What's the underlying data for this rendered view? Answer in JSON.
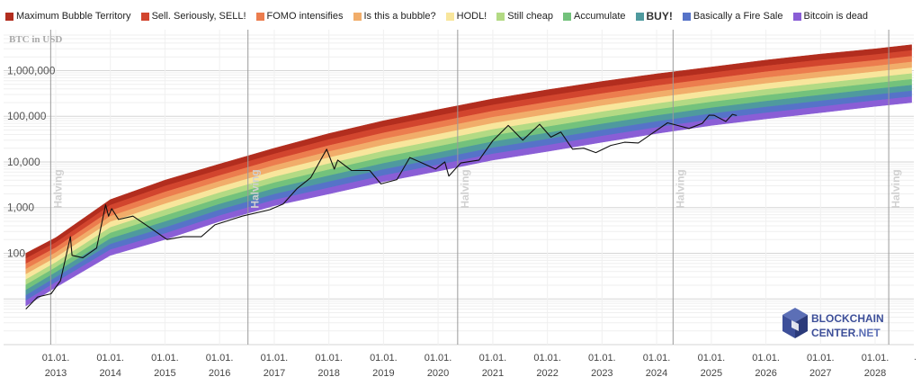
{
  "chart_data": {
    "type": "line",
    "y_scale": "log",
    "ylabel": "BTC in USD",
    "ylim": [
      1,
      6000000
    ],
    "x_ticks": [
      {
        "date": "2013-01-01",
        "label1": "01.01.",
        "label2": "2013"
      },
      {
        "date": "2014-01-01",
        "label1": "01.01.",
        "label2": "2014"
      },
      {
        "date": "2015-01-01",
        "label1": "01.01.",
        "label2": "2015"
      },
      {
        "date": "2016-01-01",
        "label1": "01.01.",
        "label2": "2016"
      },
      {
        "date": "2017-01-01",
        "label1": "01.01.",
        "label2": "2017"
      },
      {
        "date": "2018-01-01",
        "label1": "01.01.",
        "label2": "2018"
      },
      {
        "date": "2019-01-01",
        "label1": "01.01.",
        "label2": "2019"
      },
      {
        "date": "2020-01-01",
        "label1": "01.01.",
        "label2": "2020"
      },
      {
        "date": "2021-01-01",
        "label1": "01.01.",
        "label2": "2021"
      },
      {
        "date": "2022-01-01",
        "label1": "01.01.",
        "label2": "2022"
      },
      {
        "date": "2023-01-01",
        "label1": "01.01.",
        "label2": "2023"
      },
      {
        "date": "2024-01-01",
        "label1": "01.01.",
        "label2": "2024"
      },
      {
        "date": "2025-01-01",
        "label1": "01.01.",
        "label2": "2025"
      },
      {
        "date": "2026-01-01",
        "label1": "01.01.",
        "label2": "2026"
      },
      {
        "date": "2027-01-01",
        "label1": "01.01.",
        "label2": "2027"
      },
      {
        "date": "2028-01-01",
        "label1": "01.01.",
        "label2": "2028"
      }
    ],
    "y_ticks": [
      {
        "value": 100,
        "label": "100"
      },
      {
        "value": 1000,
        "label": "1,000"
      },
      {
        "value": 10000,
        "label": "10,000"
      },
      {
        "value": 100000,
        "label": "100,000"
      },
      {
        "value": 1000000,
        "label": "1,000,000"
      }
    ],
    "halvings": [
      {
        "date": "2012-11-28",
        "label": "Halving"
      },
      {
        "date": "2016-07-09",
        "label": "Halving"
      },
      {
        "date": "2020-05-11",
        "label": "Halving"
      },
      {
        "date": "2024-04-20",
        "label": "Halving"
      },
      {
        "date": "2028-04-01",
        "label": "Halving"
      }
    ],
    "bands": [
      {
        "name": "Maximum Bubble Territory",
        "color": "#b22d1e"
      },
      {
        "name": "Sell. Seriously, SELL!",
        "color": "#d2452e"
      },
      {
        "name": "FOMO intensifies",
        "color": "#ec7d4e"
      },
      {
        "name": "Is this a bubble?",
        "color": "#f1ad6a"
      },
      {
        "name": "HODL!",
        "color": "#f8e69c"
      },
      {
        "name": "Still cheap",
        "color": "#b3da84"
      },
      {
        "name": "Accumulate",
        "color": "#73c27c"
      },
      {
        "name": "BUY!",
        "color": "#4f9a9e"
      },
      {
        "name": "Basically a Fire Sale",
        "color": "#5673c8"
      },
      {
        "name": "Bitcoin is dead",
        "color": "#8a5ed6"
      }
    ],
    "band_model": {
      "bottom": [
        {
          "date": "2012-06-15",
          "value": 7
        },
        {
          "date": "2013-01-01",
          "value": 18
        },
        {
          "date": "2014-01-01",
          "value": 90
        },
        {
          "date": "2015-01-01",
          "value": 200
        },
        {
          "date": "2016-01-01",
          "value": 500
        },
        {
          "date": "2017-01-01",
          "value": 1100
        },
        {
          "date": "2018-01-01",
          "value": 2000
        },
        {
          "date": "2019-01-01",
          "value": 3700
        },
        {
          "date": "2020-01-01",
          "value": 6300
        },
        {
          "date": "2021-01-01",
          "value": 11000
        },
        {
          "date": "2022-01-01",
          "value": 17000
        },
        {
          "date": "2023-01-01",
          "value": 27000
        },
        {
          "date": "2024-01-01",
          "value": 42000
        },
        {
          "date": "2025-01-01",
          "value": 63000
        },
        {
          "date": "2026-01-01",
          "value": 88000
        },
        {
          "date": "2027-01-01",
          "value": 120000
        },
        {
          "date": "2028-01-01",
          "value": 165000
        },
        {
          "date": "2028-09-01",
          "value": 200000
        }
      ],
      "top": [
        {
          "date": "2012-06-15",
          "value": 100
        },
        {
          "date": "2013-01-01",
          "value": 220
        },
        {
          "date": "2014-01-01",
          "value": 1500
        },
        {
          "date": "2015-01-01",
          "value": 4000
        },
        {
          "date": "2016-01-01",
          "value": 9000
        },
        {
          "date": "2017-01-01",
          "value": 20000
        },
        {
          "date": "2018-01-01",
          "value": 42000
        },
        {
          "date": "2019-01-01",
          "value": 80000
        },
        {
          "date": "2020-01-01",
          "value": 140000
        },
        {
          "date": "2021-01-01",
          "value": 240000
        },
        {
          "date": "2022-01-01",
          "value": 380000
        },
        {
          "date": "2023-01-01",
          "value": 580000
        },
        {
          "date": "2024-01-01",
          "value": 850000
        },
        {
          "date": "2025-01-01",
          "value": 1200000
        },
        {
          "date": "2026-01-01",
          "value": 1700000
        },
        {
          "date": "2027-01-01",
          "value": 2300000
        },
        {
          "date": "2028-01-01",
          "value": 3000000
        },
        {
          "date": "2028-09-01",
          "value": 3700000
        }
      ]
    },
    "series": [
      {
        "color": "#111111",
        "points": [
          {
            "date": "2012-06-15",
            "value": 6
          },
          {
            "date": "2012-09-01",
            "value": 11
          },
          {
            "date": "2012-12-01",
            "value": 13
          },
          {
            "date": "2013-02-01",
            "value": 25
          },
          {
            "date": "2013-04-09",
            "value": 230
          },
          {
            "date": "2013-04-20",
            "value": 90
          },
          {
            "date": "2013-07-01",
            "value": 80
          },
          {
            "date": "2013-10-01",
            "value": 130
          },
          {
            "date": "2013-11-30",
            "value": 1150
          },
          {
            "date": "2013-12-20",
            "value": 650
          },
          {
            "date": "2014-01-10",
            "value": 950
          },
          {
            "date": "2014-02-25",
            "value": 550
          },
          {
            "date": "2014-06-01",
            "value": 650
          },
          {
            "date": "2014-10-01",
            "value": 350
          },
          {
            "date": "2015-01-15",
            "value": 200
          },
          {
            "date": "2015-05-01",
            "value": 230
          },
          {
            "date": "2015-09-01",
            "value": 230
          },
          {
            "date": "2015-12-01",
            "value": 420
          },
          {
            "date": "2016-06-01",
            "value": 650
          },
          {
            "date": "2016-12-01",
            "value": 900
          },
          {
            "date": "2017-03-01",
            "value": 1200
          },
          {
            "date": "2017-06-01",
            "value": 2600
          },
          {
            "date": "2017-09-01",
            "value": 4500
          },
          {
            "date": "2017-12-17",
            "value": 19000
          },
          {
            "date": "2018-02-06",
            "value": 7000
          },
          {
            "date": "2018-03-01",
            "value": 11000
          },
          {
            "date": "2018-06-01",
            "value": 6500
          },
          {
            "date": "2018-10-01",
            "value": 6500
          },
          {
            "date": "2018-12-15",
            "value": 3300
          },
          {
            "date": "2019-04-01",
            "value": 4100
          },
          {
            "date": "2019-06-26",
            "value": 12500
          },
          {
            "date": "2019-09-01",
            "value": 10000
          },
          {
            "date": "2019-12-15",
            "value": 7000
          },
          {
            "date": "2020-02-15",
            "value": 10000
          },
          {
            "date": "2020-03-13",
            "value": 4900
          },
          {
            "date": "2020-06-01",
            "value": 9500
          },
          {
            "date": "2020-10-01",
            "value": 11000
          },
          {
            "date": "2020-12-31",
            "value": 29000
          },
          {
            "date": "2021-04-14",
            "value": 63000
          },
          {
            "date": "2021-07-20",
            "value": 30000
          },
          {
            "date": "2021-11-10",
            "value": 67000
          },
          {
            "date": "2022-01-24",
            "value": 35000
          },
          {
            "date": "2022-04-01",
            "value": 45000
          },
          {
            "date": "2022-06-18",
            "value": 19000
          },
          {
            "date": "2022-09-01",
            "value": 20000
          },
          {
            "date": "2022-11-21",
            "value": 16000
          },
          {
            "date": "2023-03-01",
            "value": 23000
          },
          {
            "date": "2023-06-01",
            "value": 27000
          },
          {
            "date": "2023-09-01",
            "value": 26000
          },
          {
            "date": "2023-12-01",
            "value": 42000
          },
          {
            "date": "2024-03-14",
            "value": 72000
          },
          {
            "date": "2024-08-05",
            "value": 54000
          },
          {
            "date": "2024-11-01",
            "value": 70000
          },
          {
            "date": "2024-12-17",
            "value": 106000
          },
          {
            "date": "2025-01-20",
            "value": 105000
          },
          {
            "date": "2025-04-08",
            "value": 77000
          },
          {
            "date": "2025-05-22",
            "value": 110000
          },
          {
            "date": "2025-06-20",
            "value": 104000
          }
        ]
      }
    ]
  },
  "logo": {
    "line1": "BLOCKCHAIN",
    "line2a": "CENTER",
    "line2b": ".NET"
  },
  "trailing_tick": "."
}
